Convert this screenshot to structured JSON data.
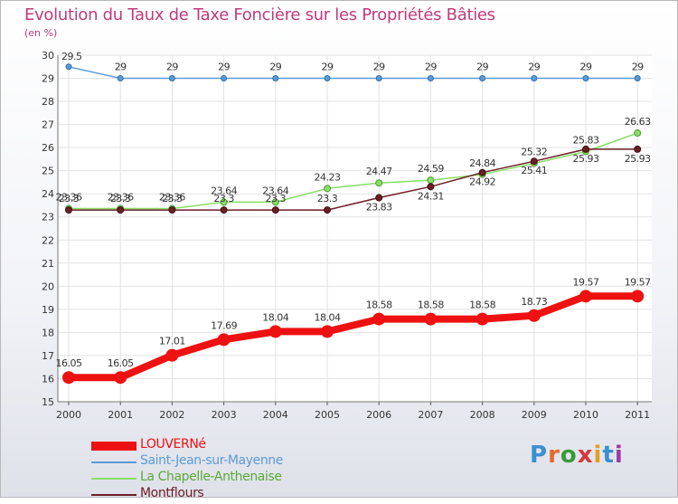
{
  "header": {
    "title": "Evolution du Taux de Taxe Foncière sur les Propriétés Bâties",
    "subtitle": "(en %)"
  },
  "brand": {
    "letters": [
      "P",
      "r",
      "o",
      "x",
      "i",
      "t",
      "i"
    ],
    "colors": [
      "#3a8fd0",
      "#e46b2a",
      "#3a9a3a",
      "#d13a3a",
      "#e0a020",
      "#3a8fd0",
      "#9a3aa8"
    ]
  },
  "chart_data": {
    "type": "line",
    "title": "Evolution du Taux de Taxe Foncière sur les Propriétés Bâties",
    "ylabel": "(en %)",
    "xlabel": "",
    "ylim": [
      15,
      30
    ],
    "y_ticks": [
      15,
      16,
      17,
      18,
      19,
      20,
      21,
      22,
      23,
      24,
      25,
      26,
      27,
      28,
      29,
      30
    ],
    "x": [
      "2000",
      "2001",
      "2002",
      "2003",
      "2004",
      "2005",
      "2006",
      "2007",
      "2008",
      "2009",
      "2010",
      "2011"
    ],
    "grid": true,
    "series": [
      {
        "name": "LOUVERNé",
        "color": "#ee1111",
        "values": [
          16.05,
          16.05,
          17.01,
          17.69,
          18.04,
          18.04,
          18.58,
          18.58,
          18.58,
          18.73,
          19.57,
          19.57
        ],
        "labels": [
          "16.05",
          "16.05",
          "17.01",
          "17.69",
          "18.04",
          "18.04",
          "18.58",
          "18.58",
          "18.58",
          "18.73",
          "19.57",
          "19.57"
        ]
      },
      {
        "name": "Saint-Jean-sur-Mayenne",
        "color": "#5b9bd5",
        "values": [
          29.5,
          29,
          29,
          29,
          29,
          29,
          29,
          29,
          29,
          29,
          29,
          29
        ],
        "labels": [
          "29.5",
          "29",
          "29",
          "29",
          "29",
          "29",
          "29",
          "29",
          "29",
          "29",
          "29",
          "29"
        ]
      },
      {
        "name": "La Chapelle-Anthenaise",
        "color": "#88dd66",
        "values": [
          23.36,
          23.36,
          23.36,
          23.64,
          23.64,
          24.23,
          24.47,
          24.59,
          24.84,
          25.32,
          25.83,
          26.63
        ],
        "labels": [
          "23.36",
          "23.36",
          "23.36",
          "23.64",
          "23.64",
          "24.23",
          "24.47",
          "24.59",
          "24.84",
          "25.32",
          "25.83",
          "26.63"
        ]
      },
      {
        "name": "Montflours",
        "color": "#6b1f24",
        "values": [
          23.3,
          23.3,
          23.3,
          23.3,
          23.3,
          23.3,
          23.83,
          24.31,
          24.92,
          25.41,
          25.93,
          25.93
        ],
        "labels": [
          "23.3",
          "23.3",
          "23.3",
          "23.3",
          "23.3",
          "23.3",
          "23.83",
          "24.31",
          "24.92",
          "25.41",
          "25.93",
          "25.93"
        ]
      }
    ]
  }
}
